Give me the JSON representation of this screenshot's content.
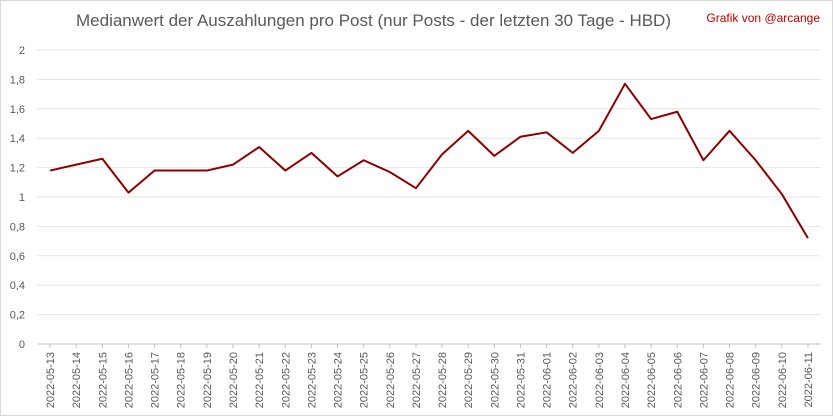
{
  "chart_data": {
    "type": "line",
    "title": "Medianwert der Auszahlungen pro Post (nur Posts - der letzten 30 Tage - HBD)",
    "credit": "Grafik von @arcange",
    "xlabel": "",
    "ylabel": "",
    "ylim": [
      0,
      2
    ],
    "y_ticks": [
      "0",
      "0,2",
      "0,4",
      "0,6",
      "0,8",
      "1",
      "1,2",
      "1,4",
      "1,6",
      "1,8",
      "2"
    ],
    "grid": true,
    "legend": "none",
    "line_color": "#8b0000",
    "categories": [
      "2022-05-13",
      "2022-05-14",
      "2022-05-15",
      "2022-05-16",
      "2022-05-17",
      "2022-05-18",
      "2022-05-19",
      "2022-05-20",
      "2022-05-21",
      "2022-05-22",
      "2022-05-23",
      "2022-05-24",
      "2022-05-25",
      "2022-05-26",
      "2022-05-27",
      "2022-05-28",
      "2022-05-29",
      "2022-05-30",
      "2022-05-31",
      "2022-06-01",
      "2022-06-02",
      "2022-06-03",
      "2022-06-04",
      "2022-06-05",
      "2022-06-06",
      "2022-06-07",
      "2022-06-08",
      "2022-06-09",
      "2022-06-10",
      "2022-06-11"
    ],
    "values": [
      1.18,
      1.22,
      1.26,
      1.03,
      1.18,
      1.18,
      1.18,
      1.22,
      1.34,
      1.18,
      1.3,
      1.14,
      1.25,
      1.17,
      1.06,
      1.29,
      1.45,
      1.28,
      1.41,
      1.44,
      1.3,
      1.45,
      1.77,
      1.53,
      1.58,
      1.25,
      1.45,
      1.25,
      1.02,
      0.72
    ]
  }
}
